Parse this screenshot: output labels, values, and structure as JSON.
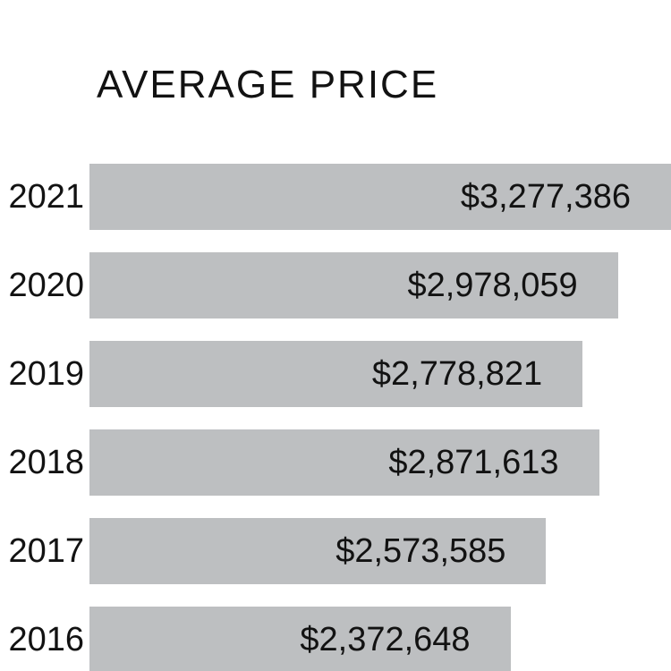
{
  "chart_data": {
    "type": "bar",
    "orientation": "horizontal",
    "title": "AVERAGE PRICE",
    "categories": [
      "2021",
      "2020",
      "2019",
      "2018",
      "2017",
      "2016"
    ],
    "values": [
      3277386,
      2978059,
      2778821,
      2871613,
      2573585,
      2372648
    ],
    "value_labels": [
      "$3,277,386",
      "$2,978,059",
      "$2,778,821",
      "$2,871,613",
      "$2,573,585",
      "$2,372,648"
    ],
    "xlim": [
      0,
      3277386
    ],
    "grid": false,
    "legend": false,
    "bar_color": "#bdbfc1",
    "text_color": "#121212",
    "background_color": "#ffffff"
  }
}
